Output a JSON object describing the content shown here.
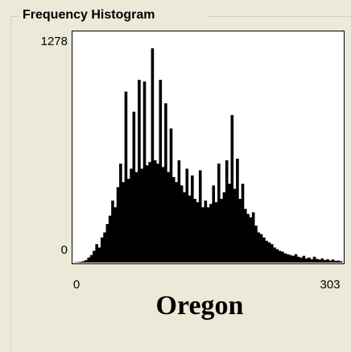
{
  "chart_data": {
    "type": "histogram",
    "title": "Frequency Histogram",
    "annotation": "Oregon",
    "bins": [
      0,
      3,
      6,
      9,
      12,
      15,
      18,
      21,
      24,
      27,
      30,
      33,
      36,
      39,
      42,
      45,
      48,
      51,
      54,
      57,
      60,
      63,
      66,
      69,
      72,
      75,
      78,
      81,
      84,
      87,
      90,
      93,
      96,
      99,
      102,
      105,
      108,
      111,
      114,
      117,
      120,
      123,
      126,
      129,
      132,
      135,
      138,
      141,
      144,
      147,
      150,
      153,
      156,
      159,
      162,
      165,
      168,
      171,
      174,
      177,
      180,
      183,
      186,
      189,
      192,
      195,
      198,
      201,
      204,
      207,
      210,
      213,
      216,
      219,
      222,
      225,
      228,
      231,
      234,
      237,
      240,
      243,
      246,
      249,
      252,
      255,
      258,
      261,
      264,
      267,
      270,
      273,
      276,
      279,
      282,
      285,
      288,
      291,
      294,
      297,
      300,
      303
    ],
    "values": [
      2,
      3,
      5,
      8,
      15,
      30,
      45,
      70,
      110,
      90,
      150,
      180,
      230,
      280,
      370,
      330,
      450,
      590,
      480,
      1020,
      500,
      560,
      900,
      540,
      1090,
      560,
      1080,
      580,
      600,
      1278,
      610,
      590,
      1090,
      570,
      950,
      540,
      800,
      510,
      480,
      610,
      460,
      420,
      560,
      400,
      520,
      380,
      360,
      550,
      330,
      370,
      330,
      350,
      460,
      360,
      590,
      380,
      420,
      610,
      470,
      880,
      440,
      620,
      380,
      470,
      320,
      290,
      270,
      300,
      220,
      180,
      170,
      150,
      130,
      120,
      110,
      90,
      80,
      70,
      65,
      55,
      50,
      45,
      40,
      50,
      35,
      30,
      40,
      25,
      30,
      20,
      35,
      22,
      18,
      25,
      15,
      20,
      12,
      18,
      10,
      12,
      8
    ],
    "color": "#000000",
    "xlim": [
      0,
      303
    ],
    "xticks": [
      0,
      303
    ],
    "ylim": [
      0,
      1278
    ],
    "yticks": [
      0,
      1278
    ]
  }
}
